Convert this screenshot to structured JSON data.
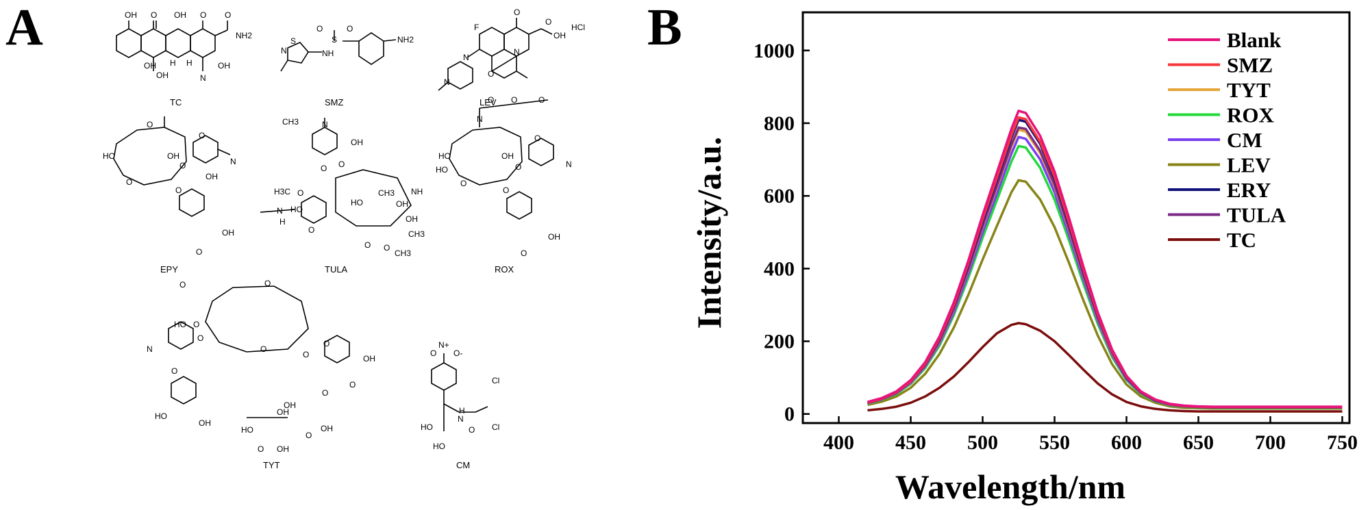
{
  "panels": {
    "a_label": "A",
    "b_label": "B"
  },
  "structures": {
    "molecules": [
      {
        "name": "TC",
        "atoms": [
          "OH",
          "O",
          "OH",
          "O",
          "O",
          "NH2",
          "OH",
          "OH",
          "H",
          "H",
          "OH",
          "N"
        ]
      },
      {
        "name": "SMZ",
        "atoms": [
          "S",
          "N",
          "O",
          "S",
          "O",
          "NH",
          "NH2"
        ]
      },
      {
        "name": "LEV",
        "atoms": [
          "F",
          "O",
          "O",
          "OH",
          "HCl",
          "N",
          "N",
          "N",
          "O"
        ]
      },
      {
        "name": "EPY",
        "atoms": [
          "O",
          "HO",
          "OH",
          "N",
          "O",
          "O",
          "O",
          "OH",
          "O",
          "OH",
          "O"
        ]
      },
      {
        "name": "TULA",
        "atoms": [
          "N",
          "OH",
          "O",
          "O",
          "NH",
          "H3C",
          "O",
          "HO",
          "HO",
          "OH",
          "N",
          "H",
          "O",
          "OH",
          "CH3",
          "CH3",
          "O",
          "CH3",
          "O",
          "CH3"
        ]
      },
      {
        "name": "ROX",
        "atoms": [
          "N",
          "O",
          "O",
          "O",
          "O",
          "HO",
          "OH",
          "HO",
          "N",
          "O",
          "O",
          "O",
          "OH",
          "O"
        ]
      },
      {
        "name": "TYT",
        "atoms": [
          "O",
          "O",
          "N",
          "HO",
          "O",
          "O",
          "O",
          "O",
          "O",
          "OH",
          "O",
          "O",
          "O",
          "HO",
          "OH",
          "OH",
          "OH",
          "HO",
          "O",
          "O",
          "OH",
          "OH"
        ]
      },
      {
        "name": "CM",
        "atoms": [
          "O",
          "N+",
          "O-",
          "Cl",
          "Cl",
          "HO",
          "N",
          "H",
          "O",
          "HO"
        ]
      }
    ]
  },
  "chart_data": {
    "type": "line",
    "title": "",
    "xlabel": "Wavelength/nm",
    "ylabel": "Intensity/a.u.",
    "xlim": [
      375,
      755
    ],
    "ylim": [
      -25,
      1105
    ],
    "xticks": [
      400,
      450,
      500,
      550,
      600,
      650,
      700,
      750
    ],
    "yticks": [
      0,
      200,
      400,
      600,
      800,
      1000
    ],
    "legend_position": "top-right",
    "x": [
      420,
      430,
      440,
      450,
      460,
      470,
      480,
      490,
      500,
      510,
      520,
      525,
      530,
      540,
      550,
      560,
      570,
      580,
      590,
      600,
      610,
      620,
      630,
      640,
      650,
      660,
      680,
      700,
      720,
      750
    ],
    "series": [
      {
        "name": "Blank",
        "color": "#e8127c",
        "values": [
          33,
          44,
          62,
          93,
          142,
          213,
          307,
          421,
          547,
          665,
          784,
          834,
          828,
          765,
          667,
          540,
          406,
          280,
          177,
          105,
          62,
          40,
          28,
          23,
          21,
          20,
          20,
          20,
          20,
          20
        ]
      },
      {
        "name": "SMZ",
        "color": "#f5383c",
        "values": [
          31,
          42,
          60,
          90,
          138,
          208,
          300,
          413,
          536,
          651,
          767,
          816,
          811,
          749,
          653,
          528,
          397,
          274,
          173,
          103,
          61,
          39,
          27,
          22,
          20,
          19,
          19,
          19,
          19,
          19
        ]
      },
      {
        "name": "TYT",
        "color": "#e4a63a",
        "values": [
          30,
          41,
          58,
          87,
          133,
          199,
          288,
          396,
          514,
          624,
          735,
          782,
          777,
          718,
          626,
          506,
          381,
          263,
          166,
          99,
          58,
          37,
          26,
          21,
          19,
          18,
          18,
          18,
          18,
          18
        ]
      },
      {
        "name": "ROX",
        "color": "#22d93a",
        "values": [
          28,
          39,
          55,
          83,
          126,
          188,
          272,
          374,
          485,
          589,
          694,
          737,
          733,
          677,
          590,
          478,
          359,
          248,
          157,
          93,
          55,
          35,
          24,
          20,
          18,
          17,
          17,
          17,
          17,
          17
        ]
      },
      {
        "name": "CM",
        "color": "#7a3ff0",
        "values": [
          29,
          40,
          57,
          85,
          130,
          194,
          280,
          385,
          500,
          607,
          716,
          762,
          757,
          700,
          610,
          493,
          371,
          256,
          162,
          96,
          57,
          36,
          25,
          21,
          19,
          18,
          18,
          18,
          18,
          18
        ]
      },
      {
        "name": "LEV",
        "color": "#878417",
        "values": [
          25,
          34,
          48,
          72,
          110,
          165,
          238,
          327,
          425,
          518,
          610,
          643,
          639,
          590,
          514,
          416,
          313,
          216,
          137,
          81,
          48,
          31,
          21,
          17,
          16,
          15,
          15,
          15,
          15,
          15
        ]
      },
      {
        "name": "ERY",
        "color": "#121278",
        "values": [
          31,
          42,
          60,
          90,
          137,
          206,
          298,
          409,
          531,
          645,
          760,
          809,
          804,
          743,
          647,
          524,
          394,
          272,
          172,
          102,
          60,
          38,
          27,
          22,
          20,
          19,
          19,
          19,
          19,
          19
        ]
      },
      {
        "name": "TULA",
        "color": "#7b2a84",
        "values": [
          30,
          41,
          58,
          88,
          134,
          201,
          290,
          399,
          518,
          629,
          741,
          788,
          784,
          724,
          631,
          510,
          384,
          265,
          168,
          99,
          59,
          37,
          26,
          21,
          19,
          18,
          18,
          18,
          18,
          18
        ]
      },
      {
        "name": "TC",
        "color": "#7b0d0d",
        "values": [
          10,
          14,
          20,
          31,
          48,
          72,
          103,
          142,
          184,
          222,
          245,
          250,
          247,
          229,
          200,
          162,
          122,
          84,
          54,
          33,
          21,
          14,
          10,
          8,
          7,
          7,
          7,
          7,
          7,
          7
        ]
      }
    ]
  }
}
